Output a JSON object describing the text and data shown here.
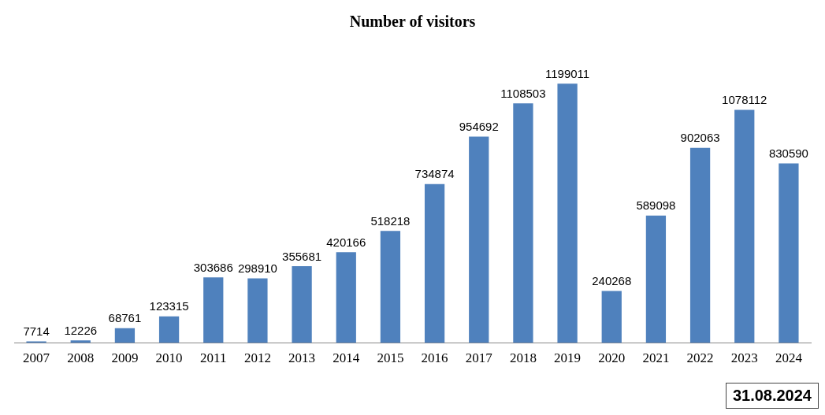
{
  "chart_data": {
    "type": "bar",
    "title": "Number of visitors",
    "categories": [
      "2007",
      "2008",
      "2009",
      "2010",
      "2011",
      "2012",
      "2013",
      "2014",
      "2015",
      "2016",
      "2017",
      "2018",
      "2019",
      "2020",
      "2021",
      "2022",
      "2023",
      "2024"
    ],
    "values": [
      7714,
      12226,
      68761,
      123315,
      303686,
      298910,
      355681,
      420166,
      518218,
      734874,
      954692,
      1108503,
      1199011,
      240268,
      589098,
      902063,
      1078112,
      830590
    ],
    "color": "#4f81bd",
    "data_labels": true,
    "tick_labels": "x",
    "grid": false,
    "legend": false,
    "annotations": [
      "31.08.2024"
    ]
  }
}
